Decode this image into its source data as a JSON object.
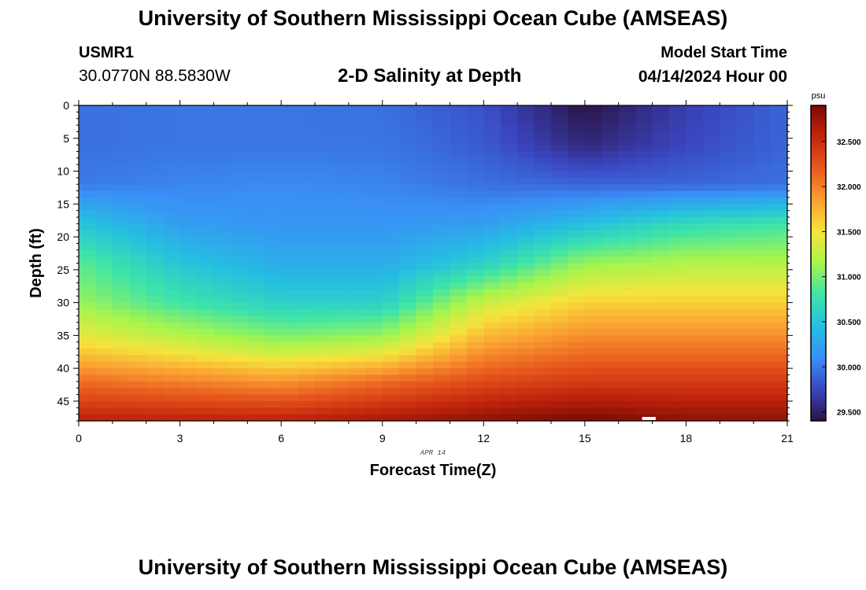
{
  "header": {
    "title": "University of Southern Mississippi Ocean Cube (AMSEAS)",
    "station_id": "USMR1",
    "coordinates": "30.0770N  88.5830W",
    "chart_title": "2-D Salinity at Depth",
    "model_start_label": "Model Start Time",
    "model_start_value": "04/14/2024 Hour 00"
  },
  "footer": {
    "title": "University of Southern Mississippi Ocean Cube (AMSEAS)"
  },
  "chart_data": {
    "type": "heatmap",
    "title": "2-D Salinity at Depth",
    "xlabel": "Forecast Time(Z)",
    "ylabel": "Depth (ft)",
    "x_ticks": [
      0,
      3,
      6,
      9,
      12,
      15,
      18,
      21
    ],
    "y_ticks": [
      0,
      5,
      10,
      15,
      20,
      25,
      30,
      35,
      40,
      45
    ],
    "xlim": [
      0,
      21
    ],
    "ylim": [
      0,
      48
    ],
    "date_annotation": "APR 14",
    "colorbar": {
      "unit": "psu",
      "ticks": [
        "29.500",
        "30.000",
        "30.500",
        "31.000",
        "31.500",
        "32.000",
        "32.500"
      ],
      "range": [
        29.4,
        32.9
      ]
    },
    "depths": [
      0,
      6,
      12,
      18,
      24,
      30,
      36,
      42,
      48
    ],
    "times": [
      0,
      3,
      6,
      9,
      12,
      15,
      18,
      21
    ],
    "values": [
      [
        29.95,
        29.98,
        29.98,
        29.95,
        29.8,
        29.4,
        29.7,
        29.9
      ],
      [
        29.95,
        29.98,
        29.98,
        29.98,
        29.85,
        29.55,
        29.75,
        29.9
      ],
      [
        30.0,
        30.05,
        30.08,
        30.05,
        29.95,
        29.9,
        29.9,
        29.95
      ],
      [
        30.5,
        30.2,
        30.15,
        30.15,
        30.2,
        30.45,
        30.7,
        30.8
      ],
      [
        30.9,
        30.5,
        30.3,
        30.3,
        30.6,
        31.1,
        31.2,
        31.2
      ],
      [
        31.1,
        30.8,
        30.6,
        30.6,
        31.3,
        31.6,
        31.6,
        31.6
      ],
      [
        31.5,
        31.3,
        31.1,
        31.2,
        31.8,
        32.0,
        32.0,
        32.0
      ],
      [
        32.1,
        32.0,
        31.9,
        32.1,
        32.3,
        32.4,
        32.4,
        32.4
      ],
      [
        32.6,
        32.6,
        32.6,
        32.7,
        32.8,
        32.9,
        32.8,
        32.8
      ]
    ]
  },
  "colors": {
    "colormap": [
      "#2b1244",
      "#3a46c0",
      "#3a8ff7",
      "#25bfe0",
      "#3ee4a8",
      "#a7f54c",
      "#f6e43c",
      "#fba032",
      "#e85a1e",
      "#c3260c",
      "#7a0a04"
    ],
    "marker": "#ffffff",
    "axis": "#000000"
  }
}
